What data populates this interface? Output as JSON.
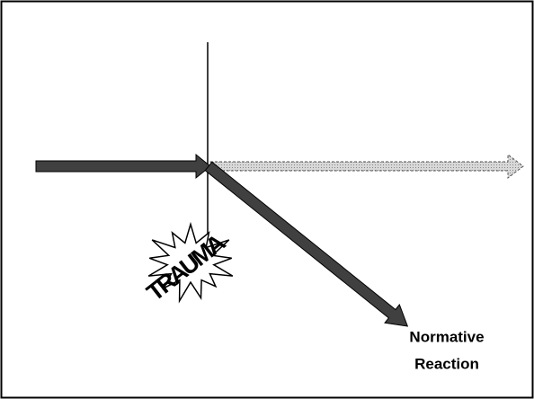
{
  "labels": {
    "trauma": "TRAUMA",
    "outcome": [
      "Normative",
      "Reaction"
    ]
  }
}
